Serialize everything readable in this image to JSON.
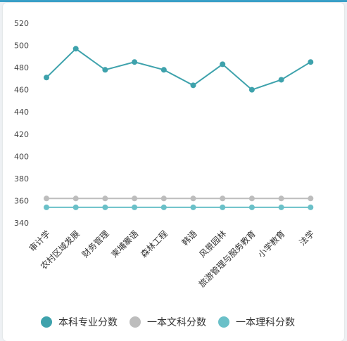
{
  "chart_data": {
    "type": "line",
    "categories": [
      "审计学",
      "农村区域发展",
      "财务管理",
      "柬埔寨语",
      "森林工程",
      "韩语",
      "风景园林",
      "旅游管理与服务教育",
      "小学教育",
      "法学"
    ],
    "series": [
      {
        "name": "本科专业分数",
        "color": "#3ea2ac",
        "values": [
          471,
          497,
          478,
          485,
          478,
          464,
          483,
          460,
          469,
          485
        ]
      },
      {
        "name": "一本文科分数",
        "color": "#bdbdbd",
        "values": [
          362,
          362,
          362,
          362,
          362,
          362,
          362,
          362,
          362,
          362
        ]
      },
      {
        "name": "一本理科分数",
        "color": "#6ac0c8",
        "values": [
          354,
          354,
          354,
          354,
          354,
          354,
          354,
          354,
          354,
          354
        ]
      }
    ],
    "yticks": [
      340,
      360,
      380,
      400,
      420,
      440,
      460,
      480,
      500,
      520
    ],
    "ylim": [
      340,
      520
    ],
    "grid": false,
    "legend_position": "bottom"
  }
}
